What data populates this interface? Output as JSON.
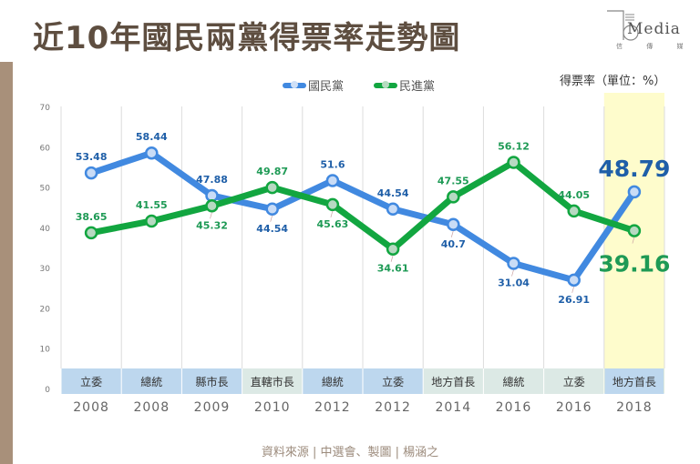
{
  "title": "近10年國民兩黨得票率走勢圖",
  "logo": {
    "text": "Media",
    "subtext": "信 傳 媒"
  },
  "unit_label": "得票率（單位：%）",
  "source": "資料來源 | 中選會、製圖 | 楊涵之",
  "chart_data": {
    "type": "line",
    "title": "近10年國民兩黨得票率走勢圖",
    "ylabel": "得票率（單位：%）",
    "ylim": [
      0,
      70
    ],
    "yticks": [
      "0",
      "10",
      "20",
      "30",
      "40",
      "50",
      "60",
      "70"
    ],
    "grid": "vertical",
    "legend_position": "top-center",
    "categories": [
      "立委",
      "總統",
      "縣市長",
      "直轄市長",
      "總統",
      "立委",
      "地方首長",
      "總統",
      "立委",
      "地方首長"
    ],
    "years": [
      "2008",
      "2008",
      "2009",
      "2010",
      "2012",
      "2012",
      "2014",
      "2016",
      "2016",
      "2018"
    ],
    "category_colors": [
      "#bdd7ee",
      "#bdd7ee",
      "#bdd7ee",
      "#dce9e5",
      "#bdd7ee",
      "#bdd7ee",
      "#dce9e5",
      "#dce9e5",
      "#dce9e5",
      "#bdd7ee"
    ],
    "highlight_index": 9,
    "highlight_color": "#fefccc",
    "series": [
      {
        "name": "國民黨",
        "color": "#4189e0",
        "label_color": "#1f5fa8",
        "values": [
          53.48,
          58.44,
          47.88,
          44.54,
          51.6,
          44.54,
          40.7,
          31.04,
          26.91,
          48.79
        ],
        "labels": [
          "53.48",
          "58.44",
          "47.88",
          "44.54",
          "51.6",
          "44.54",
          "40.7",
          "31.04",
          "26.91",
          "48.79"
        ],
        "label_pos": [
          "above",
          "above",
          "above",
          "below",
          "above",
          "above",
          "below",
          "below",
          "below",
          "above-big"
        ]
      },
      {
        "name": "民進黨",
        "color": "#12a640",
        "label_color": "#1e9a55",
        "values": [
          38.65,
          41.55,
          45.32,
          49.87,
          45.63,
          34.61,
          47.55,
          56.12,
          44.05,
          39.16
        ],
        "labels": [
          "38.65",
          "41.55",
          "45.32",
          "49.87",
          "45.63",
          "34.61",
          "47.55",
          "56.12",
          "44.05",
          "39.16"
        ],
        "label_pos": [
          "above",
          "above",
          "below",
          "above",
          "below",
          "below",
          "above",
          "above",
          "above",
          "below-big"
        ]
      }
    ]
  }
}
